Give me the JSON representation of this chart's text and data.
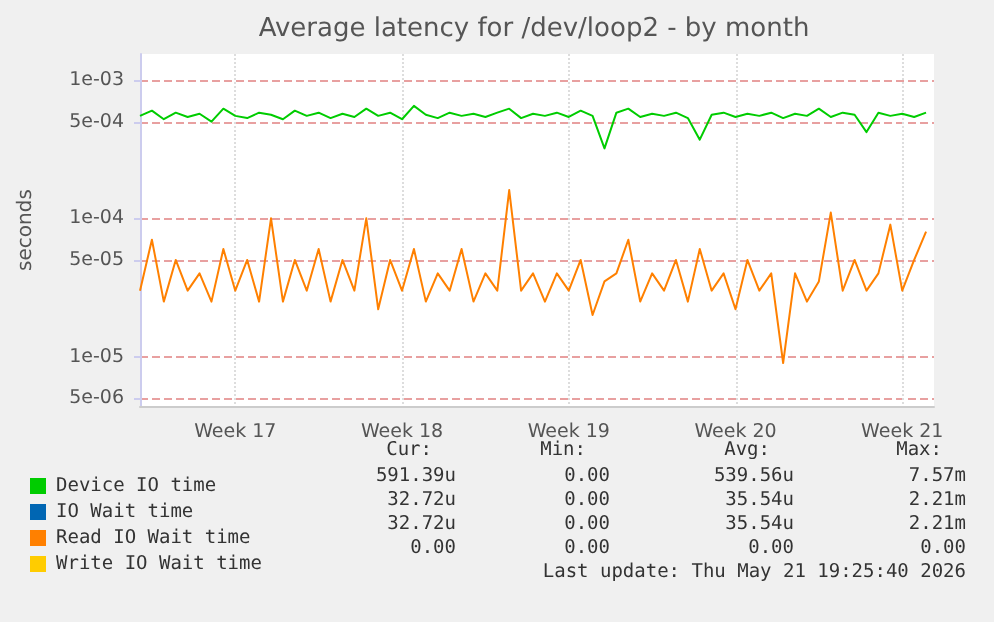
{
  "chart_data": {
    "type": "line",
    "title": "Average latency for /dev/loop2 - by month",
    "ylabel": "seconds",
    "x": [
      "2026-04-19T12:00",
      "2026-04-20T00:00",
      "2026-04-20T12:00",
      "2026-04-21T00:00",
      "2026-04-21T12:00",
      "2026-04-22T00:00",
      "2026-04-22T12:00",
      "2026-04-23T00:00",
      "2026-04-23T12:00",
      "2026-04-24T00:00",
      "2026-04-24T12:00",
      "2026-04-25T00:00",
      "2026-04-25T12:00",
      "2026-04-26T00:00",
      "2026-04-26T12:00",
      "2026-04-27T00:00",
      "2026-04-27T12:00",
      "2026-04-28T00:00",
      "2026-04-28T12:00",
      "2026-04-29T00:00",
      "2026-04-29T12:00",
      "2026-04-30T00:00",
      "2026-04-30T12:00",
      "2026-05-01T00:00",
      "2026-05-01T12:00",
      "2026-05-02T00:00",
      "2026-05-02T12:00",
      "2026-05-03T00:00",
      "2026-05-03T12:00",
      "2026-05-04T00:00",
      "2026-05-04T12:00",
      "2026-05-05T00:00",
      "2026-05-05T12:00",
      "2026-05-06T00:00",
      "2026-05-06T12:00",
      "2026-05-07T00:00",
      "2026-05-07T12:00",
      "2026-05-08T00:00",
      "2026-05-08T12:00",
      "2026-05-09T00:00",
      "2026-05-09T12:00",
      "2026-05-10T00:00",
      "2026-05-10T12:00",
      "2026-05-11T00:00",
      "2026-05-11T12:00",
      "2026-05-12T00:00",
      "2026-05-12T12:00",
      "2026-05-13T00:00",
      "2026-05-13T12:00",
      "2026-05-14T00:00",
      "2026-05-14T12:00",
      "2026-05-15T00:00",
      "2026-05-15T12:00",
      "2026-05-16T00:00",
      "2026-05-16T12:00",
      "2026-05-17T00:00",
      "2026-05-17T12:00",
      "2026-05-18T00:00",
      "2026-05-18T12:00",
      "2026-05-19T00:00",
      "2026-05-19T12:00",
      "2026-05-20T00:00",
      "2026-05-20T12:00",
      "2026-05-21T00:00",
      "2026-05-21T12:00",
      "2026-05-22T00:00",
      "2026-05-22T12:00"
    ],
    "series": [
      {
        "name": "Device IO time",
        "color": "#00cc00",
        "values": [
          0.00055,
          0.0006,
          0.00052,
          0.00058,
          0.00054,
          0.00057,
          0.0005,
          0.00062,
          0.00055,
          0.00053,
          0.00058,
          0.00056,
          0.00052,
          0.0006,
          0.00055,
          0.00058,
          0.00053,
          0.00057,
          0.00054,
          0.00062,
          0.00055,
          0.00058,
          0.00052,
          0.00065,
          0.00056,
          0.00053,
          0.00058,
          0.00055,
          0.00057,
          0.00054,
          0.00058,
          0.00062,
          0.00053,
          0.00057,
          0.00055,
          0.00058,
          0.00054,
          0.0006,
          0.00055,
          0.00032,
          0.00058,
          0.00062,
          0.00054,
          0.00057,
          0.00055,
          0.00058,
          0.00053,
          0.00037,
          0.00056,
          0.00058,
          0.00054,
          0.00057,
          0.00055,
          0.00058,
          0.00053,
          0.00057,
          0.00055,
          0.00062,
          0.00054,
          0.00058,
          0.00056,
          0.00042,
          0.00058,
          0.00055,
          0.00057,
          0.00054,
          0.00058
        ]
      },
      {
        "name": "IO Wait time",
        "color": "#0066b3",
        "values": [
          null,
          null,
          null,
          null,
          null,
          null,
          null,
          null,
          null,
          null,
          null,
          null,
          null,
          null,
          null,
          null,
          null,
          null,
          null,
          null,
          null,
          null,
          null,
          null,
          null,
          null,
          null,
          null,
          null,
          null,
          null,
          null,
          null,
          null,
          null,
          null,
          null,
          null,
          null,
          null,
          null,
          null,
          null,
          null,
          null,
          null,
          null,
          null,
          null,
          null,
          null,
          null,
          null,
          null,
          null,
          null,
          null,
          null,
          null,
          null,
          null,
          null,
          null,
          null,
          null,
          null,
          null
        ]
      },
      {
        "name": "Read IO Wait time",
        "color": "#ff8000",
        "values": [
          3e-05,
          7e-05,
          2.5e-05,
          5e-05,
          3e-05,
          4e-05,
          2.5e-05,
          6e-05,
          3e-05,
          5e-05,
          2.5e-05,
          0.0001,
          2.5e-05,
          5e-05,
          3e-05,
          6e-05,
          2.5e-05,
          5e-05,
          3e-05,
          0.0001,
          2.2e-05,
          5e-05,
          3e-05,
          6e-05,
          2.5e-05,
          4e-05,
          3e-05,
          6e-05,
          2.5e-05,
          4e-05,
          3e-05,
          0.00016,
          3e-05,
          4e-05,
          2.5e-05,
          4e-05,
          3e-05,
          5e-05,
          2e-05,
          3.5e-05,
          4e-05,
          7e-05,
          2.5e-05,
          4e-05,
          3e-05,
          5e-05,
          2.5e-05,
          6e-05,
          3e-05,
          4e-05,
          2.2e-05,
          5e-05,
          3e-05,
          4e-05,
          9e-06,
          4e-05,
          2.5e-05,
          3.5e-05,
          0.00011,
          3e-05,
          5e-05,
          3e-05,
          4e-05,
          9e-05,
          3e-05,
          5e-05,
          8e-05
        ]
      },
      {
        "name": "Write IO Wait time",
        "color": "#ffcc00",
        "values": [
          null,
          null,
          null,
          null,
          null,
          null,
          null,
          null,
          null,
          null,
          null,
          null,
          null,
          null,
          null,
          null,
          null,
          null,
          null,
          null,
          null,
          null,
          null,
          null,
          null,
          null,
          null,
          null,
          null,
          null,
          null,
          null,
          null,
          null,
          null,
          null,
          null,
          null,
          null,
          null,
          null,
          null,
          null,
          null,
          null,
          null,
          null,
          null,
          null,
          null,
          null,
          null,
          null,
          null,
          null,
          null,
          null,
          null,
          null,
          null,
          null,
          null,
          null,
          null,
          null,
          null,
          null
        ]
      }
    ],
    "xlim": [
      "2026-04-19T12:00",
      "2026-05-22T20:00"
    ],
    "xticks": [
      {
        "value": "2026-04-23T12:00",
        "label": "Week 17"
      },
      {
        "value": "2026-04-30T12:00",
        "label": "Week 18"
      },
      {
        "value": "2026-05-07T12:00",
        "label": "Week 19"
      },
      {
        "value": "2026-05-14T12:00",
        "label": "Week 20"
      },
      {
        "value": "2026-05-21T12:00",
        "label": "Week 21"
      }
    ],
    "ylim": [
      4.4e-06,
      0.00154
    ],
    "yticks": [
      {
        "value": 5e-06,
        "label": "5e-06"
      },
      {
        "value": 1e-05,
        "label": "1e-05"
      },
      {
        "value": 5e-05,
        "label": "5e-05"
      },
      {
        "value": 0.0001,
        "label": "1e-04"
      },
      {
        "value": 0.0005,
        "label": "5e-04"
      },
      {
        "value": 0.001,
        "label": "1e-03"
      }
    ],
    "log": true,
    "grid": true,
    "legend": "bottom left",
    "marker": "none",
    "line_style": "solid",
    "annotations": [
      "Cur:",
      "Min:",
      "Avg:",
      "Max:",
      "591.39u",
      "0.00",
      "539.56u",
      "7.57m",
      "32.72u",
      "0.00",
      "35.54u",
      "2.21m",
      "32.72u",
      "0.00",
      "35.54u",
      "2.21m",
      "0.00",
      "0.00",
      "0.00",
      "0.00",
      "Last update: Thu May 21 19:25:40 2026"
    ]
  }
}
